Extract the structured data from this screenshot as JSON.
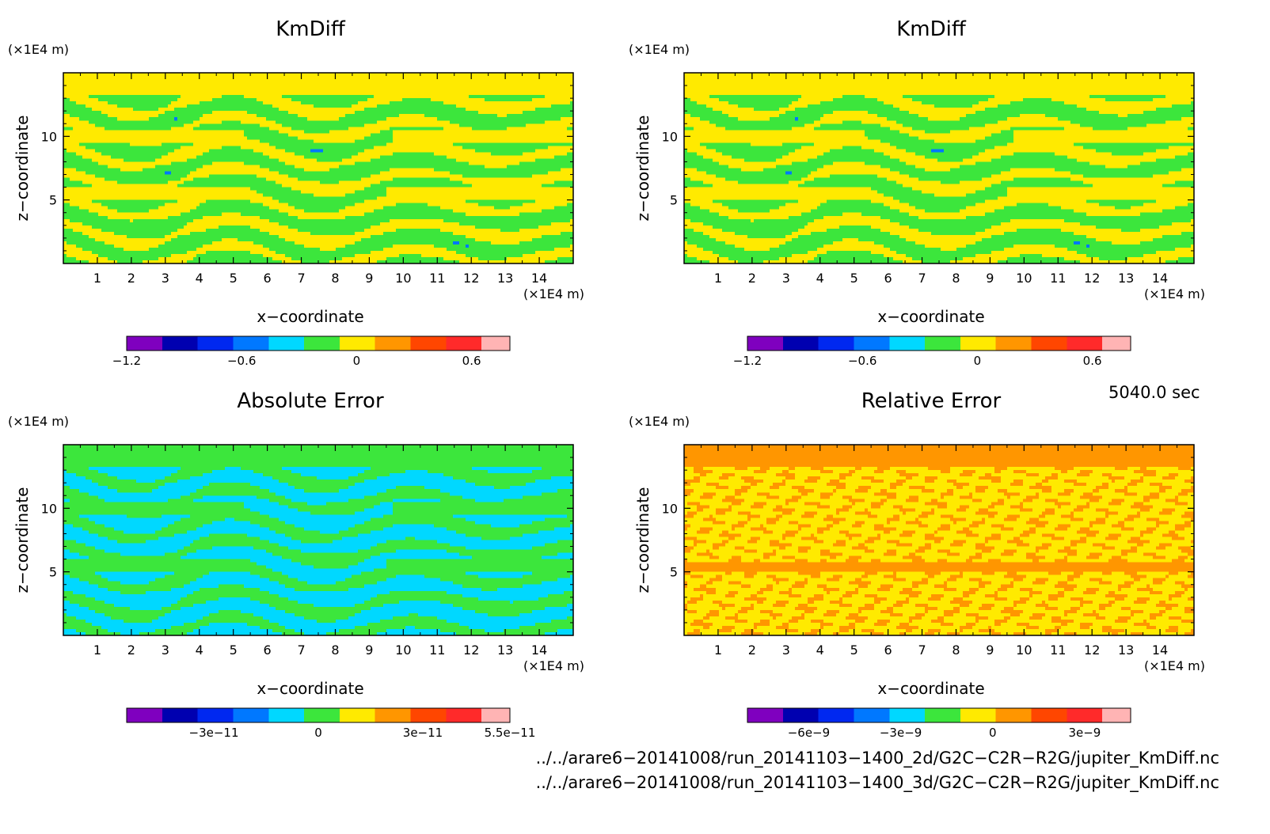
{
  "chart_data": [
    {
      "type": "heatmap",
      "title": "KmDiff",
      "xlabel": "x−coordinate",
      "ylabel": "z−coordinate",
      "xunit": "(×1E4 m)",
      "yunit": "(×1E4 m)",
      "xlim": [
        0,
        15
      ],
      "ylim": [
        0,
        15
      ],
      "xticks": [
        "1",
        "2",
        "3",
        "4",
        "5",
        "6",
        "7",
        "8",
        "9",
        "10",
        "11",
        "12",
        "13",
        "14"
      ],
      "yticks": [
        "5",
        "10"
      ],
      "colorbar": {
        "range": [
          -1.2,
          0.8
        ],
        "levels": 10,
        "colors": [
          "#7f00bf",
          "#0000b0",
          "#0028f0",
          "#0078ff",
          "#00d8ff",
          "#3ce63c",
          "#ffea00",
          "#ff9600",
          "#ff4600",
          "#ff2a2a",
          "#ffb4b4"
        ],
        "ticks": [
          "−1.2",
          "−0.6",
          "0",
          "0.6"
        ]
      },
      "style": "km"
    },
    {
      "type": "heatmap",
      "title": "KmDiff",
      "xlabel": "x−coordinate",
      "ylabel": "z−coordinate",
      "xunit": "(×1E4 m)",
      "yunit": "(×1E4 m)",
      "xlim": [
        0,
        15
      ],
      "ylim": [
        0,
        15
      ],
      "xticks": [
        "1",
        "2",
        "3",
        "4",
        "5",
        "6",
        "7",
        "8",
        "9",
        "10",
        "11",
        "12",
        "13",
        "14"
      ],
      "yticks": [
        "5",
        "10"
      ],
      "colorbar": {
        "range": [
          -1.2,
          0.8
        ],
        "levels": 10,
        "colors": [
          "#7f00bf",
          "#0000b0",
          "#0028f0",
          "#0078ff",
          "#00d8ff",
          "#3ce63c",
          "#ffea00",
          "#ff9600",
          "#ff4600",
          "#ff2a2a",
          "#ffb4b4"
        ],
        "ticks": [
          "−1.2",
          "−0.6",
          "0",
          "0.6"
        ]
      },
      "style": "km"
    },
    {
      "type": "heatmap",
      "title": "Absolute Error",
      "xlabel": "x−coordinate",
      "ylabel": "z−coordinate",
      "xunit": "(×1E4 m)",
      "yunit": "(×1E4 m)",
      "xlim": [
        0,
        15
      ],
      "ylim": [
        0,
        15
      ],
      "xticks": [
        "1",
        "2",
        "3",
        "4",
        "5",
        "6",
        "7",
        "8",
        "9",
        "10",
        "11",
        "12",
        "13",
        "14"
      ],
      "yticks": [
        "5",
        "10"
      ],
      "colorbar": {
        "range": [
          -5.5e-11,
          5.5e-11
        ],
        "levels": 11,
        "colors": [
          "#7f00bf",
          "#0000b0",
          "#0028f0",
          "#0078ff",
          "#00d8ff",
          "#3ce63c",
          "#ffea00",
          "#ff9600",
          "#ff4600",
          "#ff2a2a",
          "#ffb4b4"
        ],
        "ticks": [
          "−3e−11",
          "0",
          "3e−11",
          "5.5e−11"
        ]
      },
      "style": "abs"
    },
    {
      "type": "heatmap",
      "title": "Relative Error",
      "xlabel": "x−coordinate",
      "ylabel": "z−coordinate",
      "xunit": "(×1E4 m)",
      "yunit": "(×1E4 m)",
      "xlim": [
        0,
        15
      ],
      "ylim": [
        0,
        15
      ],
      "xticks": [
        "1",
        "2",
        "3",
        "4",
        "5",
        "6",
        "7",
        "8",
        "9",
        "10",
        "11",
        "12",
        "13",
        "14"
      ],
      "yticks": [
        "5",
        "10"
      ],
      "colorbar": {
        "range": [
          -8e-09,
          4.5e-09
        ],
        "levels": 11,
        "colors": [
          "#7f00bf",
          "#0000b0",
          "#0028f0",
          "#0078ff",
          "#00d8ff",
          "#3ce63c",
          "#ffea00",
          "#ff9600",
          "#ff4600",
          "#ff2a2a",
          "#ffb4b4"
        ],
        "ticks": [
          "−6e−9",
          "−3e−9",
          "0",
          "3e−9"
        ]
      },
      "style": "rel"
    }
  ],
  "time_label": "5040.0 sec",
  "files": [
    "../../arare6−20141008/run_20141103−1400_2d/G2C−C2R−R2G/jupiter_KmDiff.nc",
    "../../arare6−20141008/run_20141103−1400_3d/G2C−C2R−R2G/jupiter_KmDiff.nc"
  ]
}
